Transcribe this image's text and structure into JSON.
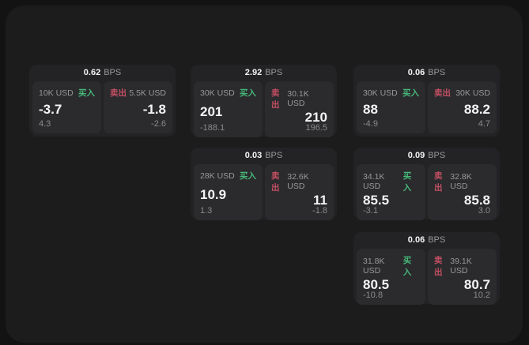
{
  "labels": {
    "buy": "买入",
    "sell": "卖出",
    "bps_unit": "BPS"
  },
  "colors": {
    "page_bg": "#131314",
    "panel_bg": "#1c1c1d",
    "card_bg": "#232325",
    "subpanel_bg": "#2b2b2d",
    "text_white": "#f4f4f5",
    "text_gray": "#98989a",
    "text_dim": "#8a8a8c",
    "green": "#46b97a",
    "red": "#c44f63"
  },
  "cards": [
    {
      "bps": "0.62",
      "buy": {
        "size": "10K USD",
        "price": "-3.7",
        "sub": "4.3"
      },
      "sell": {
        "size": "5.5K USD",
        "price": "-1.8",
        "sub": "-2.6"
      }
    },
    {
      "bps": "2.92",
      "buy": {
        "size": "30K USD",
        "price": "201",
        "sub": "-188.1"
      },
      "sell": {
        "size": "30.1K USD",
        "price": "210",
        "sub": "196.5"
      }
    },
    {
      "bps": "0.06",
      "buy": {
        "size": "30K USD",
        "price": "88",
        "sub": "-4.9"
      },
      "sell": {
        "size": "30K USD",
        "price": "88.2",
        "sub": "4.7"
      }
    },
    {
      "bps": "0.03",
      "buy": {
        "size": "28K USD",
        "price": "10.9",
        "sub": "1.3"
      },
      "sell": {
        "size": "32.6K USD",
        "price": "11",
        "sub": "-1.8"
      }
    },
    {
      "bps": "0.09",
      "buy": {
        "size": "34.1K USD",
        "price": "85.5",
        "sub": "-3.1"
      },
      "sell": {
        "size": "32.8K USD",
        "price": "85.8",
        "sub": "3.0"
      }
    },
    {
      "bps": "0.06",
      "buy": {
        "size": "31.8K USD",
        "price": "80.5",
        "sub": "-10.8"
      },
      "sell": {
        "size": "39.1K USD",
        "price": "80.7",
        "sub": "10.2"
      }
    }
  ]
}
